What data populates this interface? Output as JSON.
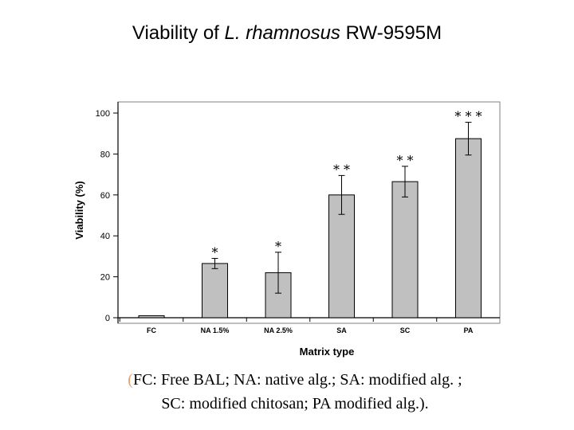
{
  "title": {
    "prefix": "Viability of ",
    "species": "L. rhamnosus",
    "suffix": " RW-9595M"
  },
  "chart_data": {
    "type": "bar",
    "categories": [
      "FC",
      "NA 1.5%",
      "NA 2.5%",
      "SA",
      "SC",
      "PA"
    ],
    "values": [
      1,
      26.5,
      22,
      60,
      66.5,
      87.5
    ],
    "errors": [
      0,
      2.5,
      10,
      9.5,
      7.5,
      8
    ],
    "significance": [
      "",
      "*",
      "*",
      "* *",
      "*   *",
      "* * *"
    ],
    "xlabel": "Matrix type",
    "ylabel": "Viability (%)",
    "ylim": [
      0,
      100
    ],
    "yticks": [
      0,
      20,
      40,
      60,
      80,
      100
    ],
    "bar_color": "#c0c0c0",
    "grid": false
  },
  "caption": {
    "open": "(",
    "line1": "FC: Free BAL; NA:  native alg.; SA: modified alg. ;",
    "line2": "SC: modified chitosan; PA modified alg.)."
  }
}
